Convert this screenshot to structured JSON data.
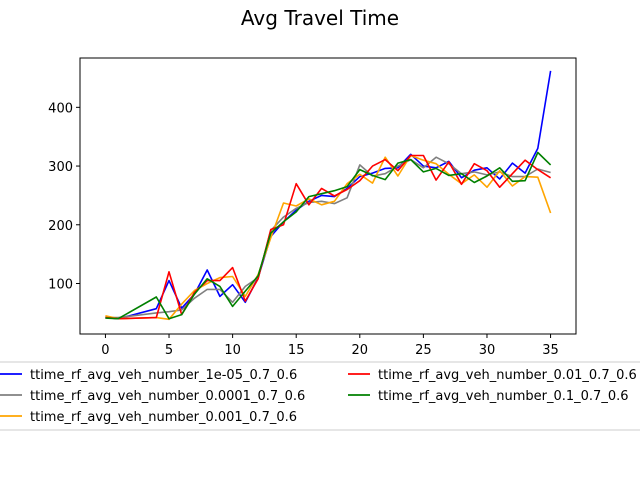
{
  "chart_data": {
    "type": "line",
    "title": "Avg Travel Time",
    "xlabel": "",
    "ylabel": "",
    "xlim": [
      -2,
      37
    ],
    "ylim": [
      14,
      484
    ],
    "xticks": [
      0,
      5,
      10,
      15,
      20,
      25,
      30,
      35
    ],
    "yticks": [
      100,
      200,
      300,
      400
    ],
    "grid": false,
    "legend_placement": "below",
    "series": [
      {
        "name": "ttime_rf_avg_veh_number_1e-05_0.7_0.6",
        "color": "#0000ff",
        "x": [
          0,
          1,
          4,
          5,
          6,
          7,
          8,
          9,
          10,
          11,
          12,
          13,
          14,
          15,
          16,
          17,
          18,
          19,
          20,
          21,
          22,
          23,
          24,
          25,
          26,
          27,
          28,
          29,
          30,
          31,
          32,
          33,
          34,
          35
        ],
        "y": [
          42,
          40,
          57,
          105,
          58,
          82,
          123,
          78,
          98,
          68,
          110,
          180,
          205,
          225,
          240,
          250,
          248,
          262,
          282,
          288,
          296,
          297,
          320,
          300,
          297,
          308,
          280,
          293,
          297,
          278,
          305,
          288,
          330,
          462
        ]
      },
      {
        "name": "ttime_rf_avg_veh_number_0.0001_0.7_0.6",
        "color": "#808080",
        "x": [
          0,
          1,
          4,
          5,
          6,
          7,
          8,
          9,
          10,
          11,
          12,
          13,
          14,
          15,
          16,
          17,
          18,
          19,
          20,
          21,
          22,
          23,
          24,
          25,
          26,
          27,
          28,
          29,
          30,
          31,
          32,
          33,
          34,
          35
        ],
        "y": [
          42,
          42,
          50,
          52,
          55,
          75,
          90,
          90,
          68,
          95,
          110,
          190,
          213,
          228,
          238,
          240,
          236,
          246,
          302,
          283,
          287,
          300,
          311,
          297,
          315,
          304,
          287,
          290,
          285,
          290,
          282,
          282,
          295,
          289
        ]
      },
      {
        "name": "ttime_rf_avg_veh_number_0.001_0.7_0.6",
        "color": "#ffa500",
        "x": [
          0,
          1,
          4,
          5,
          6,
          7,
          8,
          9,
          10,
          11,
          12,
          13,
          14,
          15,
          16,
          17,
          18,
          19,
          20,
          21,
          22,
          23,
          24,
          25,
          26,
          27,
          28,
          29,
          30,
          31,
          32,
          33,
          34,
          35
        ],
        "y": [
          45,
          40,
          42,
          39,
          65,
          88,
          100,
          110,
          112,
          78,
          115,
          178,
          237,
          232,
          244,
          234,
          240,
          270,
          286,
          271,
          315,
          283,
          318,
          310,
          304,
          286,
          270,
          285,
          264,
          292,
          266,
          282,
          281,
          220
        ]
      },
      {
        "name": "ttime_rf_avg_veh_number_0.01_0.7_0.6",
        "color": "#ff0000",
        "x": [
          0,
          1,
          4,
          5,
          6,
          7,
          8,
          9,
          10,
          11,
          12,
          13,
          14,
          15,
          16,
          17,
          18,
          19,
          20,
          21,
          22,
          23,
          24,
          25,
          26,
          27,
          28,
          29,
          30,
          31,
          32,
          33,
          34,
          35
        ],
        "y": [
          42,
          40,
          42,
          120,
          47,
          85,
          105,
          105,
          127,
          70,
          108,
          192,
          200,
          270,
          234,
          262,
          249,
          260,
          275,
          300,
          311,
          292,
          318,
          318,
          276,
          307,
          269,
          304,
          292,
          264,
          287,
          310,
          294,
          280
        ]
      },
      {
        "name": "ttime_rf_avg_veh_number_0.1_0.7_0.6",
        "color": "#008000",
        "x": [
          0,
          1,
          4,
          5,
          6,
          7,
          8,
          9,
          10,
          11,
          12,
          13,
          14,
          15,
          16,
          17,
          18,
          19,
          20,
          21,
          22,
          23,
          24,
          25,
          26,
          27,
          28,
          29,
          30,
          31,
          32,
          33,
          34,
          35
        ],
        "y": [
          41,
          40,
          77,
          40,
          47,
          82,
          108,
          95,
          61,
          87,
          113,
          186,
          205,
          222,
          248,
          253,
          258,
          265,
          294,
          284,
          277,
          305,
          311,
          290,
          296,
          284,
          287,
          272,
          283,
          297,
          274,
          275,
          323,
          302
        ]
      }
    ]
  }
}
